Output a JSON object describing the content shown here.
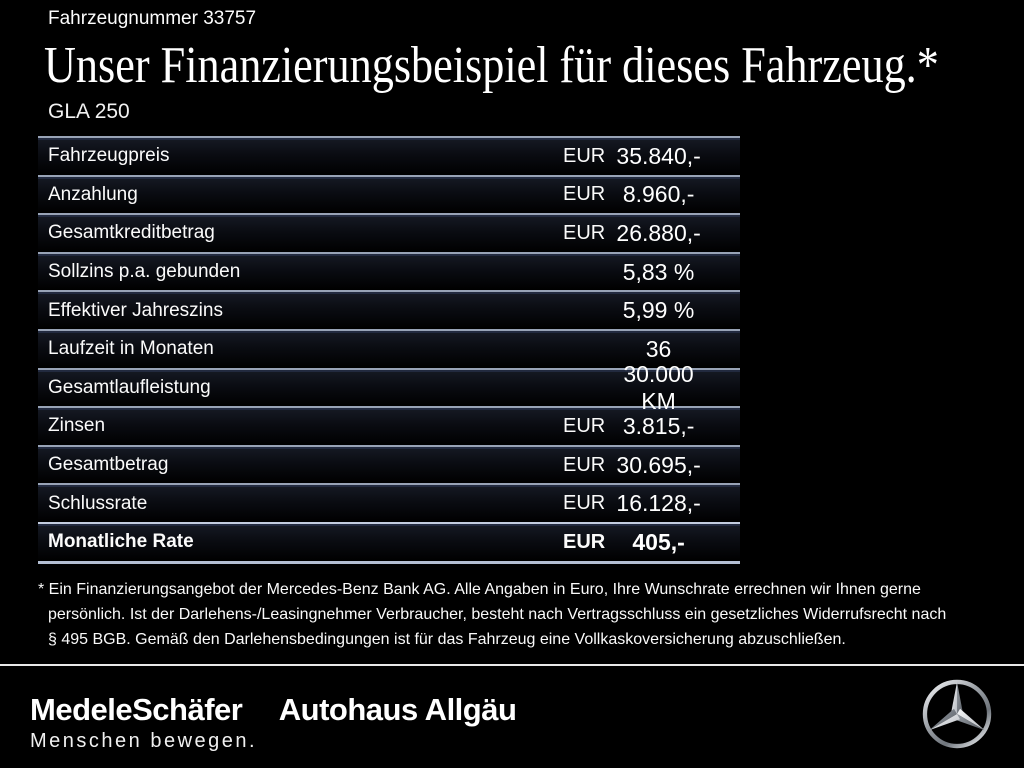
{
  "page": {
    "vehicle_number": "Fahrzeugnummer 33757",
    "title": "Unser Finanzierungsbeispiel für dieses Fahrzeug.*",
    "model": "GLA 250"
  },
  "table": {
    "rows": [
      {
        "label": "Fahrzeugpreis",
        "currency": "EUR",
        "value": "35.840,-",
        "bold": false
      },
      {
        "label": "Anzahlung",
        "currency": "EUR",
        "value": "8.960,-",
        "bold": false
      },
      {
        "label": "Gesamtkreditbetrag",
        "currency": "EUR",
        "value": "26.880,-",
        "bold": false
      },
      {
        "label": "Sollzins p.a. gebunden",
        "currency": "",
        "value": "5,83 %",
        "bold": false
      },
      {
        "label": "Effektiver Jahreszins",
        "currency": "",
        "value": "5,99 %",
        "bold": false
      },
      {
        "label": "Laufzeit in Monaten",
        "currency": "",
        "value": "36",
        "bold": false
      },
      {
        "label": "Gesamtlaufleistung",
        "currency": "",
        "value": "30.000 KM",
        "bold": false
      },
      {
        "label": "Zinsen",
        "currency": "EUR",
        "value": "3.815,-",
        "bold": false
      },
      {
        "label": "Gesamtbetrag",
        "currency": "EUR",
        "value": "30.695,-",
        "bold": false
      },
      {
        "label": "Schlussrate",
        "currency": "EUR",
        "value": "16.128,-",
        "bold": false
      },
      {
        "label": "Monatliche Rate",
        "currency": "EUR",
        "value": "405,-",
        "bold": true
      }
    ]
  },
  "footnote": {
    "lines": [
      "* Ein Finanzierungsangebot der Mercedes-Benz Bank AG. Alle Angaben in Euro, Ihre Wunschrate errechnen wir Ihnen gerne",
      "persönlich. Ist der Darlehens-/Leasingnehmer Verbraucher, besteht nach Vertragsschluss ein gesetzliches Widerrufsrecht nach",
      "§ 495 BGB. Gemäß den Darlehensbedingungen ist für das Fahrzeug eine Vollkaskoversicherung abzuschließen."
    ]
  },
  "footer": {
    "dealer_name": "MedeleSchäfer",
    "dealer_name_secondary": "Autohaus Allgäu",
    "tagline": "Menschen bewegen.",
    "brand_icon": "mercedes-benz-star"
  },
  "colors": {
    "background": "#000000",
    "text": "#ffffff",
    "separator_light": "#98a3b6",
    "separator_dark": "#222a3f",
    "table_bottom_border": "#b4bfd3",
    "footer_divider": "#e8e8e8",
    "star_silver_light": "#f2f4f6",
    "star_silver_dark": "#6f757c"
  }
}
